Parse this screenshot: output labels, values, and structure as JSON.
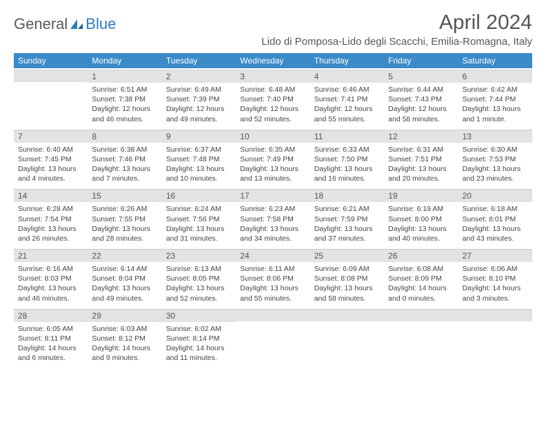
{
  "logo": {
    "text1": "General",
    "text2": "Blue"
  },
  "title": "April 2024",
  "location": "Lido di Pomposa-Lido degli Scacchi, Emilia-Romagna, Italy",
  "colors": {
    "header_bg": "#3b8bc9",
    "header_text": "#ffffff",
    "daynum_bg": "#e3e3e3",
    "body_text": "#444444",
    "title_text": "#555555"
  },
  "weekdays": [
    "Sunday",
    "Monday",
    "Tuesday",
    "Wednesday",
    "Thursday",
    "Friday",
    "Saturday"
  ],
  "weeks": [
    [
      null,
      {
        "n": "1",
        "sunrise": "6:51 AM",
        "sunset": "7:38 PM",
        "daylight": "12 hours and 46 minutes."
      },
      {
        "n": "2",
        "sunrise": "6:49 AM",
        "sunset": "7:39 PM",
        "daylight": "12 hours and 49 minutes."
      },
      {
        "n": "3",
        "sunrise": "6:48 AM",
        "sunset": "7:40 PM",
        "daylight": "12 hours and 52 minutes."
      },
      {
        "n": "4",
        "sunrise": "6:46 AM",
        "sunset": "7:41 PM",
        "daylight": "12 hours and 55 minutes."
      },
      {
        "n": "5",
        "sunrise": "6:44 AM",
        "sunset": "7:43 PM",
        "daylight": "12 hours and 58 minutes."
      },
      {
        "n": "6",
        "sunrise": "6:42 AM",
        "sunset": "7:44 PM",
        "daylight": "13 hours and 1 minute."
      }
    ],
    [
      {
        "n": "7",
        "sunrise": "6:40 AM",
        "sunset": "7:45 PM",
        "daylight": "13 hours and 4 minutes."
      },
      {
        "n": "8",
        "sunrise": "6:38 AM",
        "sunset": "7:46 PM",
        "daylight": "13 hours and 7 minutes."
      },
      {
        "n": "9",
        "sunrise": "6:37 AM",
        "sunset": "7:48 PM",
        "daylight": "13 hours and 10 minutes."
      },
      {
        "n": "10",
        "sunrise": "6:35 AM",
        "sunset": "7:49 PM",
        "daylight": "13 hours and 13 minutes."
      },
      {
        "n": "11",
        "sunrise": "6:33 AM",
        "sunset": "7:50 PM",
        "daylight": "13 hours and 16 minutes."
      },
      {
        "n": "12",
        "sunrise": "6:31 AM",
        "sunset": "7:51 PM",
        "daylight": "13 hours and 20 minutes."
      },
      {
        "n": "13",
        "sunrise": "6:30 AM",
        "sunset": "7:53 PM",
        "daylight": "13 hours and 23 minutes."
      }
    ],
    [
      {
        "n": "14",
        "sunrise": "6:28 AM",
        "sunset": "7:54 PM",
        "daylight": "13 hours and 26 minutes."
      },
      {
        "n": "15",
        "sunrise": "6:26 AM",
        "sunset": "7:55 PM",
        "daylight": "13 hours and 28 minutes."
      },
      {
        "n": "16",
        "sunrise": "6:24 AM",
        "sunset": "7:56 PM",
        "daylight": "13 hours and 31 minutes."
      },
      {
        "n": "17",
        "sunrise": "6:23 AM",
        "sunset": "7:58 PM",
        "daylight": "13 hours and 34 minutes."
      },
      {
        "n": "18",
        "sunrise": "6:21 AM",
        "sunset": "7:59 PM",
        "daylight": "13 hours and 37 minutes."
      },
      {
        "n": "19",
        "sunrise": "6:19 AM",
        "sunset": "8:00 PM",
        "daylight": "13 hours and 40 minutes."
      },
      {
        "n": "20",
        "sunrise": "6:18 AM",
        "sunset": "8:01 PM",
        "daylight": "13 hours and 43 minutes."
      }
    ],
    [
      {
        "n": "21",
        "sunrise": "6:16 AM",
        "sunset": "8:03 PM",
        "daylight": "13 hours and 46 minutes."
      },
      {
        "n": "22",
        "sunrise": "6:14 AM",
        "sunset": "8:04 PM",
        "daylight": "13 hours and 49 minutes."
      },
      {
        "n": "23",
        "sunrise": "6:13 AM",
        "sunset": "8:05 PM",
        "daylight": "13 hours and 52 minutes."
      },
      {
        "n": "24",
        "sunrise": "6:11 AM",
        "sunset": "8:06 PM",
        "daylight": "13 hours and 55 minutes."
      },
      {
        "n": "25",
        "sunrise": "6:09 AM",
        "sunset": "8:08 PM",
        "daylight": "13 hours and 58 minutes."
      },
      {
        "n": "26",
        "sunrise": "6:08 AM",
        "sunset": "8:09 PM",
        "daylight": "14 hours and 0 minutes."
      },
      {
        "n": "27",
        "sunrise": "6:06 AM",
        "sunset": "8:10 PM",
        "daylight": "14 hours and 3 minutes."
      }
    ],
    [
      {
        "n": "28",
        "sunrise": "6:05 AM",
        "sunset": "8:11 PM",
        "daylight": "14 hours and 6 minutes."
      },
      {
        "n": "29",
        "sunrise": "6:03 AM",
        "sunset": "8:12 PM",
        "daylight": "14 hours and 9 minutes."
      },
      {
        "n": "30",
        "sunrise": "6:02 AM",
        "sunset": "8:14 PM",
        "daylight": "14 hours and 11 minutes."
      },
      null,
      null,
      null,
      null
    ]
  ],
  "labels": {
    "sunrise": "Sunrise:",
    "sunset": "Sunset:",
    "daylight": "Daylight:"
  }
}
